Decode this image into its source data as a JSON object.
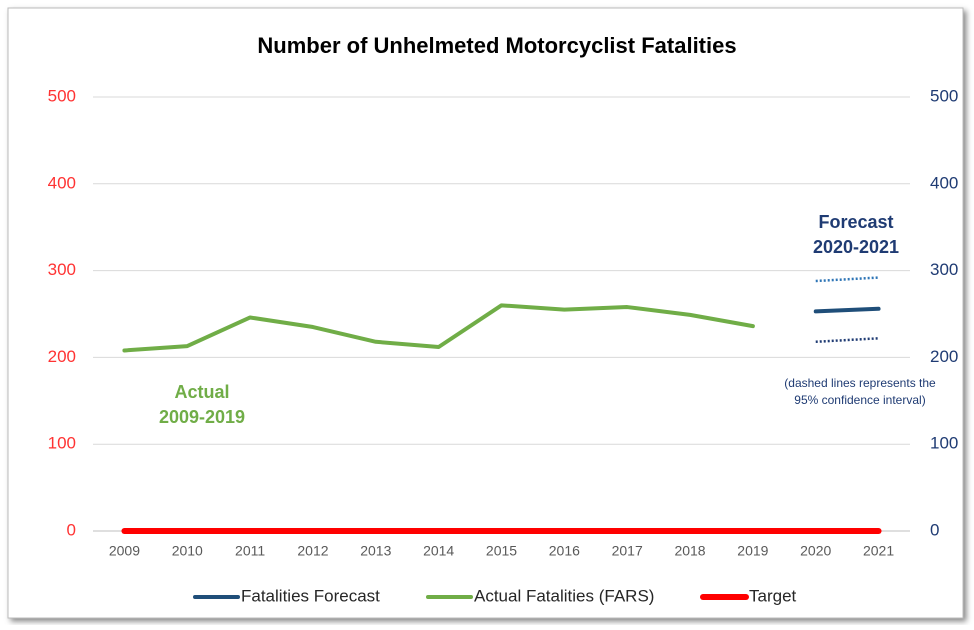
{
  "chart_data": {
    "type": "line",
    "title": "Number of Unhelmeted Motorcyclist Fatalities",
    "categories": [
      "2009",
      "2010",
      "2011",
      "2012",
      "2013",
      "2014",
      "2015",
      "2016",
      "2017",
      "2018",
      "2019",
      "2020",
      "2021"
    ],
    "series": [
      {
        "name": "Fatalities Forecast",
        "color": "#1f4e79",
        "values": [
          null,
          null,
          null,
          null,
          null,
          null,
          null,
          null,
          null,
          null,
          null,
          253,
          256
        ]
      },
      {
        "name": "Actual Fatalities (FARS)",
        "color": "#70ad47",
        "values": [
          208,
          213,
          246,
          235,
          218,
          212,
          260,
          255,
          258,
          249,
          236,
          null,
          null
        ]
      },
      {
        "name": "Target",
        "color": "#ff0000",
        "values": [
          0,
          0,
          0,
          0,
          0,
          0,
          0,
          0,
          0,
          0,
          0,
          0,
          0
        ]
      }
    ],
    "confidence_interval": {
      "upper": {
        "color": "#2e75b6",
        "values": [
          null,
          null,
          null,
          null,
          null,
          null,
          null,
          null,
          null,
          null,
          null,
          288,
          292
        ]
      },
      "lower": {
        "color": "#1f3b73",
        "values": [
          null,
          null,
          null,
          null,
          null,
          null,
          null,
          null,
          null,
          null,
          null,
          218,
          222
        ]
      }
    },
    "ylim": [
      0,
      500
    ],
    "yticks": [
      0,
      100,
      200,
      300,
      400,
      500
    ],
    "ycolor": "#ff3333",
    "y2lim": [
      0,
      500
    ],
    "y2ticks": [
      0,
      100,
      200,
      300,
      400,
      500
    ],
    "y2color": "#1f3b73",
    "grid": true,
    "legend": "bottom",
    "annotations": [
      {
        "lines": [
          "Actual",
          "2009-2019"
        ],
        "color": "#70ad47"
      },
      {
        "lines": [
          "Forecast",
          "2020-2021"
        ],
        "color": "#1f3b73"
      },
      {
        "lines": [
          "(dashed lines represents the",
          "95% confidence interval)"
        ],
        "color": "#1f3b73"
      }
    ]
  }
}
